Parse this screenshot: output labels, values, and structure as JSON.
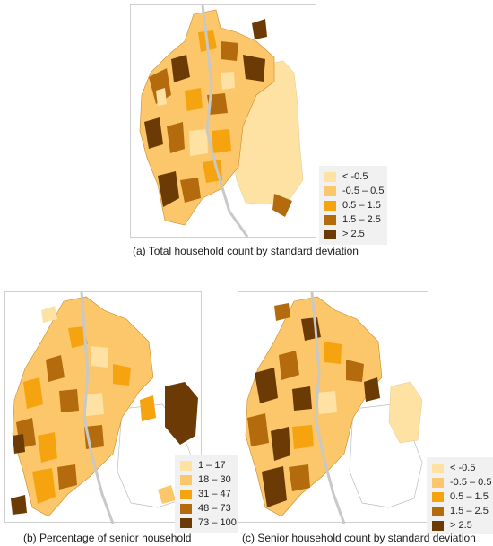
{
  "colors": {
    "c1": "#fde2a3",
    "c2": "#fcc76b",
    "c3": "#f5a30f",
    "c4": "#b46b0e",
    "c5": "#6b3a05",
    "road": "#c8c8c8",
    "outline": "#bdbdbd"
  },
  "maps": [
    {
      "id": "a",
      "caption": "(a) Total household count by standard deviation",
      "legend": [
        "< -0.5",
        "-0.5 – 0.5",
        "0.5 – 1.5",
        "1.5 – 2.5",
        "> 2.5"
      ]
    },
    {
      "id": "b",
      "caption": "(b) Percentage of senior household",
      "legend": [
        "1 – 17",
        "18 – 30",
        "31 – 47",
        "48 – 73",
        "73 – 100"
      ]
    },
    {
      "id": "c",
      "caption": "(c) Senior household count by standard deviation",
      "legend": [
        "< -0.5",
        "-0.5 – 0.5",
        "0.5 – 1.5",
        "1.5 – 2.5",
        "> 2.5"
      ]
    }
  ]
}
